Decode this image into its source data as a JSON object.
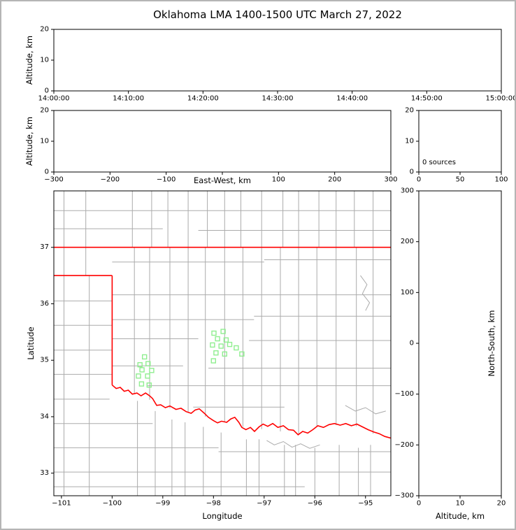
{
  "title": "Oklahoma LMA 1400-1500 UTC March 27, 2022",
  "colors": {
    "state_border": "#ff0000",
    "county_line": "#ababab",
    "station_marker": "#90ee90",
    "panel_border": "#000000",
    "page_frame": "#b5b5b5"
  },
  "chart_data": [
    {
      "id": "time_height",
      "type": "scatter",
      "xlabel": "",
      "ylabel": "Altitude, km",
      "xlim": [
        0,
        3600
      ],
      "ylim": [
        0,
        20
      ],
      "xtick_vals": [
        0,
        600,
        1200,
        1800,
        2400,
        3000,
        3600
      ],
      "xtick_labels": [
        "14:00:00",
        "14:10:00",
        "14:20:00",
        "14:30:00",
        "14:40:00",
        "14:50:00",
        "15:00:00"
      ],
      "ytick_vals": [
        0,
        10,
        20
      ],
      "ytick_labels": [
        "0",
        "10",
        "20"
      ],
      "points": []
    },
    {
      "id": "ew_height",
      "type": "scatter",
      "xlabel": "East-West, km",
      "ylabel": "Altitude, km",
      "xlim": [
        -300,
        300
      ],
      "ylim": [
        0,
        20
      ],
      "xtick_vals": [
        -300,
        -200,
        -100,
        0,
        100,
        200,
        300
      ],
      "xtick_labels": [
        "−300",
        "−200",
        "−100",
        "0",
        "100",
        "200",
        "300"
      ],
      "ytick_vals": [
        0,
        10,
        20
      ],
      "ytick_labels": [
        "0",
        "10",
        "20"
      ],
      "points": []
    },
    {
      "id": "source_histogram",
      "type": "line",
      "xlabel": "",
      "ylabel": "",
      "annotation": "0 sources",
      "xlim": [
        0,
        100
      ],
      "ylim": [
        0,
        20
      ],
      "xtick_vals": [
        0,
        50,
        100
      ],
      "xtick_labels": [
        "0",
        "50",
        "100"
      ],
      "ytick_vals": [
        0,
        10,
        20
      ],
      "ytick_labels": [
        "0",
        "10",
        "20"
      ],
      "points": []
    },
    {
      "id": "plan_view_map",
      "type": "scatter",
      "xlabel": "Longitude",
      "ylabel": "Latitude",
      "xlim": [
        -101.15,
        -94.5
      ],
      "ylim": [
        32.6,
        38.0
      ],
      "xtick_vals": [
        -101,
        -100,
        -99,
        -98,
        -97,
        -96,
        -95
      ],
      "xtick_labels": [
        "−101",
        "−100",
        "−99",
        "−98",
        "−97",
        "−96",
        "−95"
      ],
      "ytick_vals": [
        33,
        34,
        35,
        36,
        37
      ],
      "ytick_labels": [
        "33",
        "34",
        "35",
        "36",
        "37"
      ],
      "stations": [
        [
          -99.36,
          35.06
        ],
        [
          -99.45,
          34.92
        ],
        [
          -99.29,
          34.94
        ],
        [
          -99.41,
          34.83
        ],
        [
          -99.48,
          34.72
        ],
        [
          -99.3,
          34.72
        ],
        [
          -99.22,
          34.82
        ],
        [
          -99.42,
          34.58
        ],
        [
          -99.27,
          34.56
        ],
        [
          -97.99,
          35.48
        ],
        [
          -97.81,
          35.51
        ],
        [
          -97.92,
          35.38
        ],
        [
          -97.75,
          35.36
        ],
        [
          -98.02,
          35.27
        ],
        [
          -97.85,
          35.25
        ],
        [
          -97.68,
          35.28
        ],
        [
          -97.95,
          35.13
        ],
        [
          -97.78,
          35.11
        ],
        [
          -98.0,
          34.99
        ],
        [
          -97.55,
          35.22
        ],
        [
          -97.44,
          35.11
        ]
      ],
      "state_border": [
        [
          [
            -101.15,
            37.0
          ],
          [
            -94.5,
            37.0
          ]
        ],
        [
          [
            -101.15,
            36.5
          ],
          [
            -100.0,
            36.5
          ]
        ],
        [
          [
            -100.0,
            36.5
          ],
          [
            -100.0,
            34.56
          ]
        ],
        [
          [
            -100.0,
            34.56
          ],
          [
            -99.92,
            34.5
          ],
          [
            -99.84,
            34.52
          ],
          [
            -99.76,
            34.45
          ],
          [
            -99.68,
            34.47
          ],
          [
            -99.6,
            34.4
          ],
          [
            -99.51,
            34.42
          ],
          [
            -99.43,
            34.37
          ],
          [
            -99.34,
            34.42
          ],
          [
            -99.26,
            34.37
          ],
          [
            -99.2,
            34.32
          ],
          [
            -99.12,
            34.2
          ],
          [
            -99.04,
            34.21
          ],
          [
            -98.95,
            34.16
          ],
          [
            -98.86,
            34.19
          ],
          [
            -98.74,
            34.13
          ],
          [
            -98.64,
            34.15
          ],
          [
            -98.54,
            34.09
          ],
          [
            -98.44,
            34.06
          ],
          [
            -98.36,
            34.12
          ],
          [
            -98.28,
            34.14
          ],
          [
            -98.18,
            34.06
          ],
          [
            -98.1,
            33.99
          ],
          [
            -98.0,
            33.93
          ],
          [
            -97.92,
            33.89
          ],
          [
            -97.84,
            33.92
          ],
          [
            -97.74,
            33.9
          ],
          [
            -97.66,
            33.96
          ],
          [
            -97.58,
            33.99
          ],
          [
            -97.5,
            33.9
          ],
          [
            -97.44,
            33.81
          ],
          [
            -97.36,
            33.77
          ],
          [
            -97.27,
            33.81
          ],
          [
            -97.19,
            33.74
          ],
          [
            -97.1,
            33.82
          ],
          [
            -97.02,
            33.87
          ],
          [
            -96.93,
            33.83
          ],
          [
            -96.83,
            33.88
          ],
          [
            -96.73,
            33.81
          ],
          [
            -96.62,
            33.84
          ],
          [
            -96.52,
            33.77
          ],
          [
            -96.42,
            33.76
          ],
          [
            -96.33,
            33.68
          ],
          [
            -96.24,
            33.74
          ],
          [
            -96.14,
            33.71
          ],
          [
            -96.04,
            33.77
          ],
          [
            -95.94,
            33.84
          ],
          [
            -95.83,
            33.81
          ],
          [
            -95.72,
            33.86
          ],
          [
            -95.61,
            33.88
          ],
          [
            -95.5,
            33.85
          ],
          [
            -95.39,
            33.88
          ],
          [
            -95.28,
            33.84
          ],
          [
            -95.17,
            33.87
          ],
          [
            -95.06,
            33.82
          ],
          [
            -94.95,
            33.77
          ],
          [
            -94.84,
            33.73
          ],
          [
            -94.73,
            33.7
          ],
          [
            -94.62,
            33.65
          ],
          [
            -94.5,
            33.62
          ]
        ]
      ],
      "county_lines": [
        [
          [
            -100.95,
            38.0
          ],
          [
            -100.95,
            32.6
          ]
        ],
        [
          [
            -100.52,
            38.0
          ],
          [
            -100.52,
            36.5
          ]
        ],
        [
          [
            -100.45,
            36.5
          ],
          [
            -100.45,
            32.6
          ]
        ],
        [
          [
            -99.6,
            38.0
          ],
          [
            -99.6,
            37.0
          ]
        ],
        [
          [
            -99.56,
            37.0
          ],
          [
            -99.56,
            34.42
          ]
        ],
        [
          [
            -99.5,
            34.28
          ],
          [
            -99.5,
            32.6
          ]
        ],
        [
          [
            -99.22,
            38.0
          ],
          [
            -99.22,
            37.0
          ]
        ],
        [
          [
            -99.26,
            37.0
          ],
          [
            -99.26,
            34.3
          ]
        ],
        [
          [
            -99.15,
            34.1
          ],
          [
            -99.15,
            32.6
          ]
        ],
        [
          [
            -98.9,
            38.0
          ],
          [
            -98.9,
            37.0
          ]
        ],
        [
          [
            -98.86,
            37.0
          ],
          [
            -98.86,
            34.15
          ]
        ],
        [
          [
            -98.82,
            33.95
          ],
          [
            -98.82,
            32.6
          ]
        ],
        [
          [
            -98.5,
            38.0
          ],
          [
            -98.5,
            34.08
          ]
        ],
        [
          [
            -98.56,
            33.9
          ],
          [
            -98.56,
            32.6
          ]
        ],
        [
          [
            -98.12,
            38.0
          ],
          [
            -98.12,
            37.0
          ]
        ],
        [
          [
            -98.16,
            37.0
          ],
          [
            -98.16,
            34.0
          ]
        ],
        [
          [
            -98.2,
            33.82
          ],
          [
            -98.2,
            32.6
          ]
        ],
        [
          [
            -97.78,
            38.0
          ],
          [
            -97.78,
            33.9
          ]
        ],
        [
          [
            -97.85,
            33.72
          ],
          [
            -97.85,
            32.6
          ]
        ],
        [
          [
            -97.46,
            38.0
          ],
          [
            -97.46,
            37.0
          ]
        ],
        [
          [
            -97.42,
            37.0
          ],
          [
            -97.42,
            33.82
          ]
        ],
        [
          [
            -97.35,
            33.6
          ],
          [
            -97.35,
            32.6
          ]
        ],
        [
          [
            -97.05,
            38.0
          ],
          [
            -97.05,
            33.78
          ]
        ],
        [
          [
            -97.1,
            33.6
          ],
          [
            -97.1,
            32.6
          ]
        ],
        [
          [
            -96.63,
            38.0
          ],
          [
            -96.63,
            37.0
          ]
        ],
        [
          [
            -96.68,
            37.0
          ],
          [
            -96.68,
            33.74
          ]
        ],
        [
          [
            -96.6,
            33.5
          ],
          [
            -96.6,
            32.6
          ]
        ],
        [
          [
            -96.32,
            38.0
          ],
          [
            -96.32,
            33.68
          ]
        ],
        [
          [
            -96.38,
            33.5
          ],
          [
            -96.38,
            32.6
          ]
        ],
        [
          [
            -95.92,
            38.0
          ],
          [
            -95.92,
            37.0
          ]
        ],
        [
          [
            -95.96,
            37.0
          ],
          [
            -95.96,
            33.82
          ]
        ],
        [
          [
            -96.0,
            33.45
          ],
          [
            -96.0,
            32.6
          ]
        ],
        [
          [
            -95.58,
            38.0
          ],
          [
            -95.58,
            33.85
          ]
        ],
        [
          [
            -95.52,
            33.5
          ],
          [
            -95.52,
            32.6
          ]
        ],
        [
          [
            -95.22,
            38.0
          ],
          [
            -95.22,
            37.0
          ]
        ],
        [
          [
            -95.18,
            37.0
          ],
          [
            -95.18,
            33.83
          ]
        ],
        [
          [
            -95.14,
            33.45
          ],
          [
            -95.14,
            32.6
          ]
        ],
        [
          [
            -94.85,
            38.0
          ],
          [
            -94.85,
            33.7
          ]
        ],
        [
          [
            -94.9,
            33.5
          ],
          [
            -94.9,
            32.6
          ]
        ],
        [
          [
            -101.15,
            37.65
          ],
          [
            -94.5,
            37.65
          ]
        ],
        [
          [
            -101.15,
            37.33
          ],
          [
            -99.0,
            37.33
          ]
        ],
        [
          [
            -98.3,
            37.3
          ],
          [
            -94.5,
            37.3
          ]
        ],
        [
          [
            -100.0,
            36.74
          ],
          [
            -97.0,
            36.74
          ]
        ],
        [
          [
            -97.0,
            36.78
          ],
          [
            -94.5,
            36.78
          ]
        ],
        [
          [
            -100.0,
            36.16
          ],
          [
            -94.5,
            36.16
          ]
        ],
        [
          [
            -101.15,
            36.05
          ],
          [
            -100.0,
            36.05
          ]
        ],
        [
          [
            -100.0,
            35.72
          ],
          [
            -97.2,
            35.72
          ]
        ],
        [
          [
            -97.2,
            35.78
          ],
          [
            -94.5,
            35.78
          ]
        ],
        [
          [
            -101.15,
            35.62
          ],
          [
            -100.0,
            35.62
          ]
        ],
        [
          [
            -100.0,
            35.38
          ],
          [
            -98.3,
            35.38
          ]
        ],
        [
          [
            -97.3,
            35.35
          ],
          [
            -94.5,
            35.35
          ]
        ],
        [
          [
            -101.15,
            35.18
          ],
          [
            -100.0,
            35.18
          ]
        ],
        [
          [
            -100.0,
            34.9
          ],
          [
            -98.6,
            34.9
          ]
        ],
        [
          [
            -98.1,
            34.86
          ],
          [
            -94.5,
            34.86
          ]
        ],
        [
          [
            -101.15,
            34.75
          ],
          [
            -100.0,
            34.75
          ]
        ],
        [
          [
            -99.3,
            34.55
          ],
          [
            -94.5,
            34.55
          ]
        ],
        [
          [
            -101.15,
            34.31
          ],
          [
            -100.05,
            34.31
          ]
        ],
        [
          [
            -98.4,
            34.17
          ],
          [
            -96.6,
            34.17
          ]
        ],
        [
          [
            -101.15,
            33.88
          ],
          [
            -99.2,
            33.88
          ]
        ],
        [
          [
            -101.15,
            33.45
          ],
          [
            -97.9,
            33.45
          ]
        ],
        [
          [
            -97.9,
            33.38
          ],
          [
            -94.5,
            33.38
          ]
        ],
        [
          [
            -101.15,
            33.02
          ],
          [
            -94.5,
            33.02
          ]
        ],
        [
          [
            -101.15,
            32.76
          ],
          [
            -96.2,
            32.76
          ]
        ],
        [
          [
            -96.95,
            33.58
          ],
          [
            -96.8,
            33.5
          ],
          [
            -96.62,
            33.56
          ],
          [
            -96.45,
            33.46
          ],
          [
            -96.28,
            33.52
          ],
          [
            -96.1,
            33.44
          ],
          [
            -95.9,
            33.5
          ]
        ],
        [
          [
            -95.1,
            36.5
          ],
          [
            -94.97,
            36.34
          ],
          [
            -95.06,
            36.18
          ],
          [
            -94.92,
            36.02
          ],
          [
            -95.0,
            35.88
          ]
        ],
        [
          [
            -95.4,
            34.2
          ],
          [
            -95.2,
            34.1
          ],
          [
            -95.0,
            34.16
          ],
          [
            -94.8,
            34.05
          ],
          [
            -94.6,
            34.1
          ]
        ]
      ]
    },
    {
      "id": "ns_height",
      "type": "scatter",
      "xlabel": "Altitude, km",
      "ylabel_right": "North-South, km",
      "xlim": [
        0,
        20
      ],
      "ylim": [
        -300,
        300
      ],
      "xtick_vals": [
        0,
        10,
        20
      ],
      "xtick_labels": [
        "0",
        "10",
        "20"
      ],
      "ytick_vals": [
        300,
        200,
        100,
        0,
        -100,
        -200,
        -300
      ],
      "ytick_labels": [
        "300",
        "200",
        "100",
        "0",
        "−100",
        "−200",
        "−300"
      ],
      "points": []
    }
  ]
}
